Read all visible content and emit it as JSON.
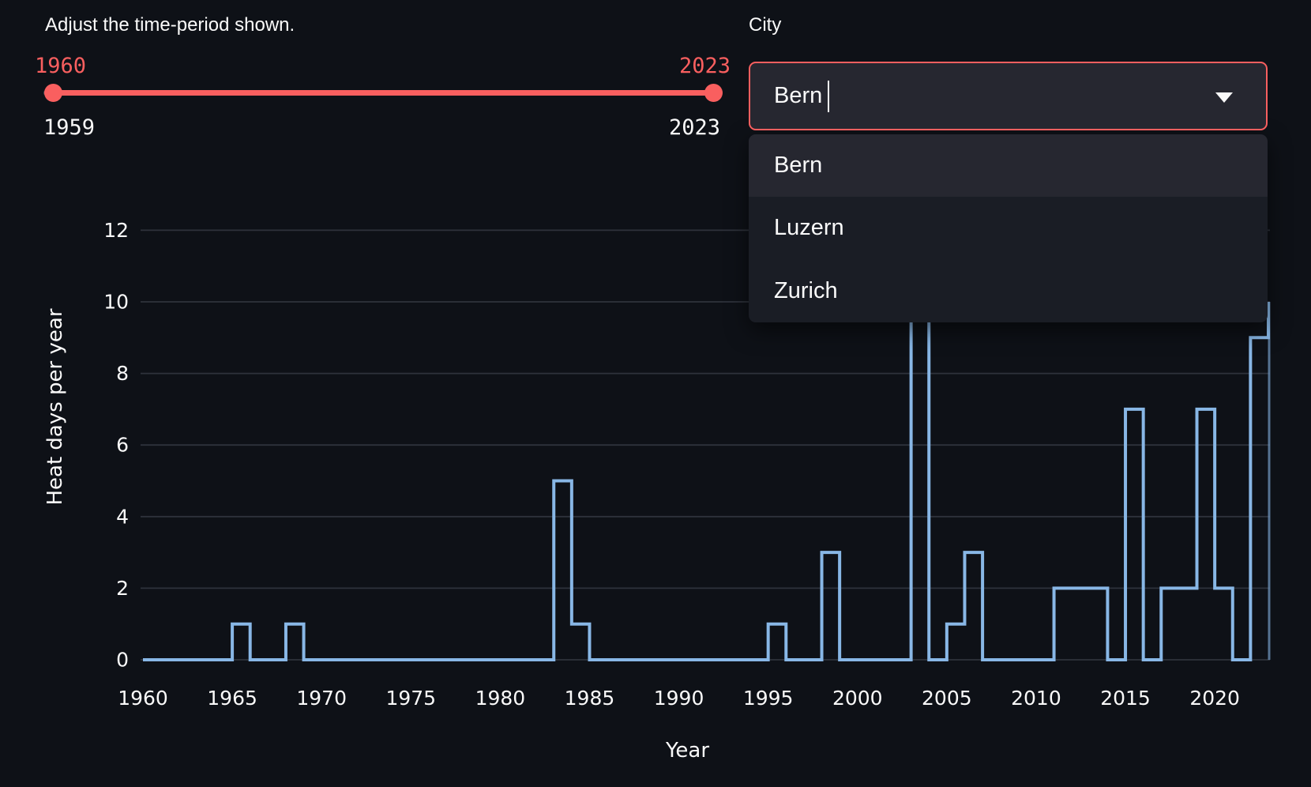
{
  "slider": {
    "title": "Adjust the time-period shown.",
    "low_value": "1960",
    "high_value": "2023",
    "min_label": "1959",
    "max_label": "2023",
    "accent_color": "#f95f5f"
  },
  "city": {
    "label": "City",
    "value": "Bern",
    "options": [
      "Bern",
      "Luzern",
      "Zurich"
    ],
    "selected_option": "Bern"
  },
  "chart_data": {
    "type": "line",
    "step_style": "steps-post",
    "x_start_year": 1960,
    "x_end_year": 2023,
    "values": [
      0,
      0,
      0,
      0,
      0,
      1,
      0,
      0,
      1,
      0,
      0,
      0,
      0,
      0,
      0,
      0,
      0,
      0,
      0,
      0,
      0,
      0,
      0,
      5,
      1,
      0,
      0,
      0,
      0,
      0,
      0,
      0,
      0,
      0,
      0,
      1,
      0,
      0,
      3,
      0,
      0,
      0,
      0,
      12,
      0,
      1,
      3,
      0,
      0,
      0,
      0,
      2,
      2,
      2,
      0,
      7,
      0,
      2,
      2,
      7,
      2,
      0,
      9,
      10
    ],
    "title": "",
    "xlabel": "Year",
    "ylabel": "Heat days per year",
    "yticks": [
      0,
      2,
      4,
      6,
      8,
      10,
      12
    ],
    "xticks": [
      1960,
      1965,
      1970,
      1975,
      1980,
      1985,
      1990,
      1995,
      2000,
      2005,
      2010,
      2015,
      2020
    ],
    "ylim": [
      0,
      12.6
    ],
    "grid": "horizontal-only",
    "legend": "none",
    "line_color": "#88b7e6",
    "grid_color": "#2e323b",
    "tick_color": "#fafafa",
    "right_edge_color": "#6f94bd"
  }
}
